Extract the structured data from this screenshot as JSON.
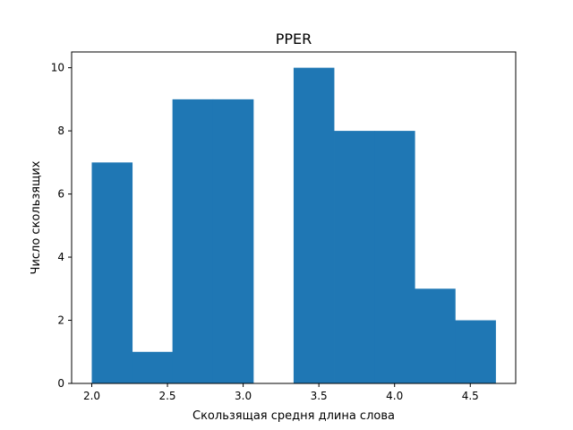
{
  "chart_data": {
    "type": "bar",
    "subtype": "histogram",
    "title": "PPER",
    "xlabel": "Скользящая средня длина слова",
    "ylabel": "Число скользящих",
    "xlim": [
      1.867,
      4.8
    ],
    "ylim": [
      0,
      10.5
    ],
    "xticks": [
      2.0,
      2.5,
      3.0,
      3.5,
      4.0,
      4.5
    ],
    "xtick_labels": [
      "2.0",
      "2.5",
      "3.0",
      "3.5",
      "4.0",
      "4.5"
    ],
    "yticks": [
      0,
      2,
      4,
      6,
      8,
      10
    ],
    "ytick_labels": [
      "0",
      "2",
      "4",
      "6",
      "8",
      "10"
    ],
    "bins": [
      {
        "x0": 2.0,
        "x1": 2.267,
        "count": 7
      },
      {
        "x0": 2.267,
        "x1": 2.533,
        "count": 1
      },
      {
        "x0": 2.533,
        "x1": 2.8,
        "count": 9
      },
      {
        "x0": 2.8,
        "x1": 3.067,
        "count": 9
      },
      {
        "x0": 3.067,
        "x1": 3.333,
        "count": 0
      },
      {
        "x0": 3.333,
        "x1": 3.6,
        "count": 10
      },
      {
        "x0": 3.6,
        "x1": 3.867,
        "count": 8
      },
      {
        "x0": 3.867,
        "x1": 4.133,
        "count": 8
      },
      {
        "x0": 4.133,
        "x1": 4.4,
        "count": 3
      },
      {
        "x0": 4.4,
        "x1": 4.667,
        "count": 2
      }
    ],
    "bar_color": "#1f77b4",
    "grid": false,
    "legend": "none"
  }
}
